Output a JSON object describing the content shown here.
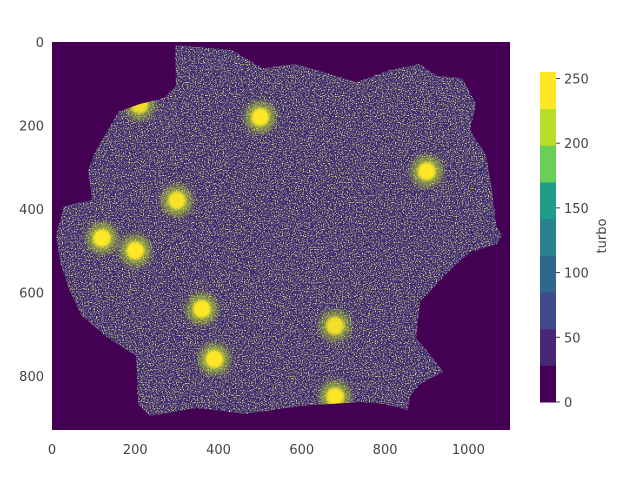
{
  "chart_data": {
    "type": "heatmap",
    "title": "",
    "xlabel": "",
    "ylabel": "",
    "x_ticks": [
      0,
      200,
      400,
      600,
      800,
      1000
    ],
    "y_ticks": [
      0,
      200,
      400,
      600,
      800
    ],
    "xlim": [
      0,
      1100
    ],
    "ylim": [
      930,
      0
    ],
    "y_axis_reversed": true,
    "description_of_values": "night-time light intensity raster shaped like Germany; background value 0",
    "colorscale": {
      "name": "viridis",
      "title": "turbo",
      "range": [
        0,
        255
      ],
      "ticks": [
        0,
        50,
        100,
        150,
        200,
        250
      ],
      "colors": [
        "#440154",
        "#482777",
        "#3f4a8a",
        "#31678e",
        "#26838f",
        "#1f9d8a",
        "#6cce5a",
        "#b6de2b",
        "#fee825"
      ]
    },
    "bright_clusters": [
      {
        "x": 120,
        "y": 470,
        "value": 255
      },
      {
        "x": 200,
        "y": 500,
        "value": 255
      },
      {
        "x": 500,
        "y": 180,
        "value": 255
      },
      {
        "x": 900,
        "y": 310,
        "value": 255
      },
      {
        "x": 360,
        "y": 640,
        "value": 255
      },
      {
        "x": 390,
        "y": 760,
        "value": 255
      },
      {
        "x": 300,
        "y": 380,
        "value": 240
      },
      {
        "x": 680,
        "y": 850,
        "value": 250
      },
      {
        "x": 680,
        "y": 680,
        "value": 230
      },
      {
        "x": 210,
        "y": 150,
        "value": 220
      }
    ]
  }
}
